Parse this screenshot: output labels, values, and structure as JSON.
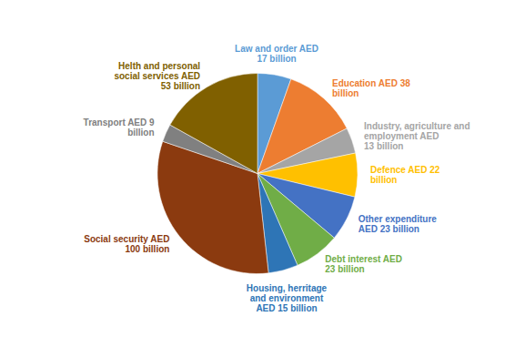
{
  "chart_data": {
    "type": "pie",
    "categories": [
      "Law and order AED\n17 billion",
      "Education AED 38\nbillion",
      "Industry, agriculture and\nemployment AED\n13 billion",
      "Defence AED 22\nbillion",
      "Other expenditure\nAED 23 billion",
      "Debt interest AED\n23 billion",
      "Housing, herritage\nand environment\nAED 15 billion",
      "Social security AED\n100 billion",
      "Transport AED 9\nbillion",
      "Helth and personal\nsocial services AED\n53 billion"
    ],
    "values": [
      17,
      38,
      13,
      22,
      23,
      23,
      15,
      100,
      9,
      53
    ],
    "colors": [
      "#5b9bd5",
      "#ed7d31",
      "#a5a5a5",
      "#ffc000",
      "#4472c4",
      "#70ad47",
      "#2e75b6",
      "#8b3a0f",
      "#808080",
      "#806000"
    ]
  }
}
